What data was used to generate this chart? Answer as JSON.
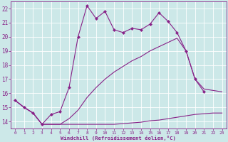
{
  "xlabel": "Windchill (Refroidissement éolien,°C)",
  "bg_color": "#cce8e8",
  "line_color": "#882288",
  "grid_color": "#aacccc",
  "xlim": [
    -0.5,
    23.5
  ],
  "ylim": [
    13.5,
    22.5
  ],
  "yticks": [
    14,
    15,
    16,
    17,
    18,
    19,
    20,
    21,
    22
  ],
  "xticks": [
    0,
    1,
    2,
    3,
    4,
    5,
    6,
    7,
    8,
    9,
    10,
    11,
    12,
    13,
    14,
    15,
    16,
    17,
    18,
    19,
    20,
    21,
    22,
    23
  ],
  "line1_x": [
    0,
    1,
    2,
    3,
    4,
    5,
    6,
    7,
    8,
    9,
    10,
    11,
    12,
    13,
    14,
    15,
    16,
    17,
    18,
    19,
    20,
    21
  ],
  "line1_y": [
    15.5,
    15.0,
    14.6,
    13.8,
    14.5,
    14.7,
    16.4,
    20.0,
    22.2,
    21.3,
    21.8,
    20.5,
    20.3,
    20.6,
    20.5,
    20.9,
    21.7,
    21.1,
    20.3,
    19.0,
    17.0,
    16.1
  ],
  "line2_x": [
    0,
    1,
    2,
    3,
    4,
    5,
    6,
    7,
    8,
    9,
    10,
    11,
    12,
    13,
    14,
    15,
    16,
    17,
    18,
    19,
    20,
    21,
    22,
    23
  ],
  "line2_y": [
    15.5,
    15.0,
    14.6,
    13.8,
    13.8,
    13.8,
    13.8,
    13.8,
    13.8,
    13.8,
    13.8,
    13.8,
    13.85,
    13.9,
    13.95,
    14.05,
    14.1,
    14.2,
    14.3,
    14.4,
    14.5,
    14.55,
    14.6,
    14.6
  ],
  "line3_x": [
    0,
    1,
    2,
    3,
    4,
    5,
    6,
    7,
    8,
    9,
    10,
    11,
    12,
    13,
    14,
    15,
    16,
    17,
    18,
    19,
    20,
    21,
    22,
    23
  ],
  "line3_y": [
    15.5,
    15.0,
    14.6,
    13.8,
    13.8,
    13.8,
    14.2,
    14.8,
    15.7,
    16.4,
    17.0,
    17.5,
    17.9,
    18.3,
    18.6,
    19.0,
    19.3,
    19.6,
    19.9,
    19.0,
    17.0,
    16.3,
    16.2,
    16.1
  ],
  "marker": "D",
  "markersize": 2.0,
  "linewidth": 0.8
}
